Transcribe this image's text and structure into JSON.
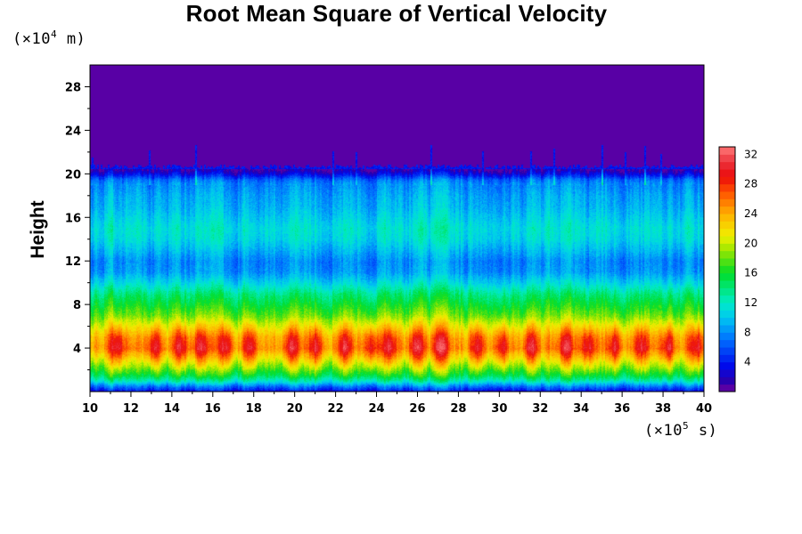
{
  "chart_data": {
    "type": "heatmap",
    "title": "Root Mean Square of Vertical Velocity",
    "xlabel": "",
    "ylabel": "Height",
    "x_unit": {
      "prefix": "(×10",
      "exp": "5",
      "suffix": " s)"
    },
    "y_unit": {
      "prefix": "(×10",
      "exp": "4",
      "suffix": " m)"
    },
    "xlim": [
      10,
      40
    ],
    "ylim": [
      0,
      30
    ],
    "x_ticks": [
      "10",
      "12",
      "14",
      "16",
      "18",
      "20",
      "22",
      "24",
      "26",
      "28",
      "30",
      "32",
      "34",
      "36",
      "38",
      "40"
    ],
    "y_ticks": [
      "4",
      "8",
      "12",
      "16",
      "20",
      "24",
      "28"
    ],
    "colorbar": {
      "range": [
        0,
        33
      ],
      "levels": [
        1,
        2,
        3,
        4,
        5,
        6,
        7,
        8,
        9,
        10,
        11,
        12,
        13,
        14,
        15,
        16,
        17,
        18,
        19,
        20,
        21,
        22,
        23,
        24,
        25,
        26,
        27,
        28,
        29,
        30,
        31,
        32
      ],
      "tick_labels": [
        "4",
        "8",
        "12",
        "16",
        "20",
        "24",
        "28",
        "32"
      ]
    },
    "height_profile": {
      "heights": [
        0,
        0.5,
        1,
        1.5,
        2,
        3,
        4,
        5,
        6,
        7,
        8,
        9,
        10,
        11,
        12,
        13,
        14,
        15,
        16,
        17,
        18,
        19,
        19.5,
        20,
        20.5,
        21,
        30
      ],
      "typical_values": [
        3,
        7,
        12,
        15,
        17,
        21,
        25,
        24,
        21,
        18,
        16,
        14,
        11,
        8.5,
        8,
        9.5,
        11,
        11.5,
        10.5,
        9.5,
        9,
        8,
        6.5,
        3,
        0.5,
        0,
        0
      ]
    },
    "peak_times": [
      11.3,
      13.1,
      14.4,
      15.4,
      16.6,
      17.8,
      19.8,
      21.0,
      22.4,
      23.7,
      24.6,
      25.9,
      27.1,
      28.9,
      30.1,
      31.5,
      33.2,
      34.3,
      35.6,
      36.9,
      38.2,
      39.6
    ]
  }
}
